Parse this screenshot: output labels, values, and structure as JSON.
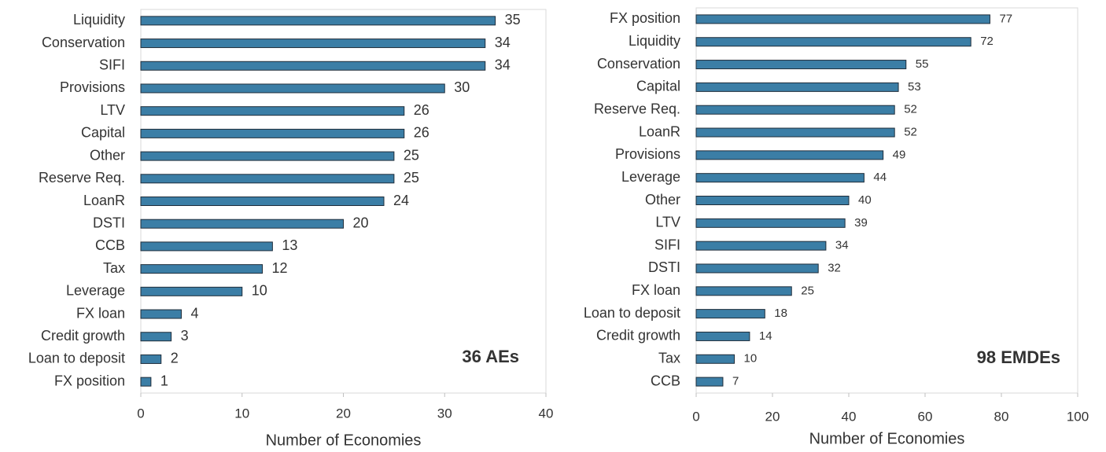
{
  "chart_data": [
    {
      "type": "bar",
      "orientation": "horizontal",
      "color": "#3b7ea6",
      "categories": [
        "Liquidity",
        "Conservation",
        "SIFI",
        "Provisions",
        "LTV",
        "Capital",
        "Other",
        "Reserve Req.",
        "LoanR",
        "DSTI",
        "CCB",
        "Tax",
        "Leverage",
        "FX loan",
        "Credit growth",
        "Loan to deposit",
        "FX position"
      ],
      "values": [
        35,
        34,
        34,
        30,
        26,
        26,
        25,
        25,
        24,
        20,
        13,
        12,
        10,
        4,
        3,
        2,
        1
      ],
      "xlim": [
        0,
        40
      ],
      "xticks": [
        0,
        10,
        20,
        30,
        40
      ],
      "xlabel": "Number of Economies",
      "annotation": "36 AEs",
      "grid": false
    },
    {
      "type": "bar",
      "orientation": "horizontal",
      "color": "#3b7ea6",
      "categories": [
        "FX position",
        "Liquidity",
        "Conservation",
        "Capital",
        "Reserve Req.",
        "LoanR",
        "Provisions",
        "Leverage",
        "Other",
        "LTV",
        "SIFI",
        "DSTI",
        "FX loan",
        "Loan to deposit",
        "Credit growth",
        "Tax",
        "CCB"
      ],
      "values": [
        77,
        72,
        55,
        53,
        52,
        52,
        49,
        44,
        40,
        39,
        34,
        32,
        25,
        18,
        14,
        10,
        7
      ],
      "xlim": [
        0,
        100
      ],
      "xticks": [
        0,
        20,
        40,
        60,
        80,
        100
      ],
      "xlabel": "Number of Economies",
      "annotation": "98 EMDEs",
      "grid": false
    }
  ]
}
